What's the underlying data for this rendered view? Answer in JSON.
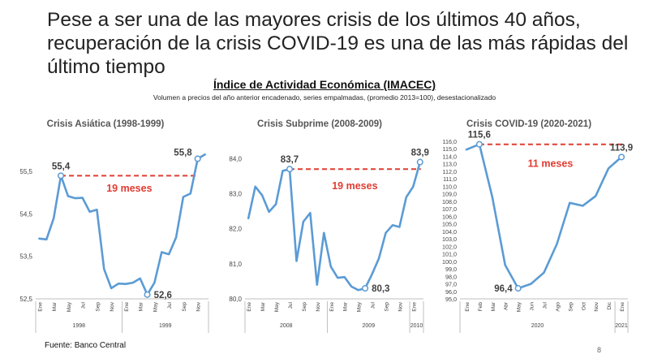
{
  "slide": {
    "title": "Pese a ser una de las mayores crisis de los últimos 40 años, recuperación de la crisis COVID-19 es una de las más rápidas del último tiempo",
    "main_title": "Índice de Actividad Económica (IMACEC)",
    "subtitle": "Volumen a precios del año anterior encadenado, series empalmadas, (promedio 2013=100), desestacionalizado",
    "footer": "Fuente: Banco Central",
    "page_number": "8"
  },
  "colors": {
    "line": "#5b9bd5",
    "marker_fill": "#ffffff",
    "dashed": "#e03c31",
    "annotation": "#e03c31"
  },
  "chart_data": [
    {
      "type": "line",
      "title": "Crisis Asiática (1998-1999)",
      "x": [
        "Ene",
        "Feb",
        "Mar",
        "Abr",
        "May",
        "Jun",
        "Jul",
        "Ago",
        "Sep",
        "Oct",
        "Nov",
        "Dic",
        "Ene",
        "Feb",
        "Mar",
        "Abr",
        "May",
        "Jun",
        "Jul",
        "Ago",
        "Sep",
        "Oct",
        "Nov",
        "Dic"
      ],
      "tick_labels": [
        "Ene",
        "",
        "Mar",
        "",
        "May",
        "",
        "Jul",
        "",
        "Sep",
        "",
        "Nov",
        "",
        "Ene",
        "",
        "Mar",
        "",
        "May",
        "",
        "Jul",
        "",
        "Sep",
        "",
        "Nov",
        ""
      ],
      "year_groups": [
        {
          "label": "1998",
          "start": 0,
          "end": 11
        },
        {
          "label": "1999",
          "start": 12,
          "end": 23
        }
      ],
      "values": [
        53.92,
        53.9,
        54.4,
        55.4,
        54.92,
        54.87,
        54.88,
        54.55,
        54.6,
        53.2,
        52.75,
        52.86,
        52.85,
        52.88,
        52.98,
        52.6,
        52.88,
        53.6,
        53.55,
        53.95,
        54.9,
        54.98,
        55.8,
        55.9
      ],
      "ylim": [
        52.5,
        56.0
      ],
      "yticks": [
        "52,5",
        "53,5",
        "54,5",
        "55,5"
      ],
      "ytick_values": [
        52.5,
        53.5,
        54.5,
        55.5
      ],
      "highlight": [
        {
          "index": 3,
          "label": "55,4",
          "anchor": "above"
        },
        {
          "index": 15,
          "label": "52,6",
          "anchor": "right"
        },
        {
          "index": 22,
          "label": "55,8",
          "anchor": "left"
        }
      ],
      "dashed_from": 3,
      "dashed_to": 22,
      "dashed_y": 55.4,
      "span_label": "19 meses",
      "span_label_y": 55.25
    },
    {
      "type": "line",
      "title": "Crisis Subprime (2008-2009)",
      "x": [
        "Ene",
        "Feb",
        "Mar",
        "Abr",
        "May",
        "Jun",
        "Jul",
        "Ago",
        "Sep",
        "Oct",
        "Nov",
        "Dic",
        "Ene",
        "Feb",
        "Mar",
        "Abr",
        "May",
        "Jun",
        "Jul",
        "Ago",
        "Sep",
        "Oct",
        "Nov",
        "Dic",
        "Ene",
        "Feb"
      ],
      "tick_labels": [
        "Ene",
        "",
        "Mar",
        "",
        "May",
        "",
        "Jul",
        "",
        "Sep",
        "",
        "Nov",
        "",
        "Ene",
        "",
        "Mar",
        "",
        "May",
        "",
        "Jul",
        "",
        "Sep",
        "",
        "Nov",
        "",
        "Ene",
        ""
      ],
      "year_groups": [
        {
          "label": "2008",
          "start": 0,
          "end": 11
        },
        {
          "label": "2009",
          "start": 12,
          "end": 23
        },
        {
          "label": "2010",
          "start": 24,
          "end": 25
        }
      ],
      "values": [
        82.3,
        83.2,
        82.95,
        82.48,
        82.7,
        83.65,
        83.7,
        81.08,
        82.2,
        82.45,
        80.4,
        81.88,
        80.92,
        80.6,
        80.62,
        80.35,
        80.25,
        80.3,
        80.7,
        81.15,
        81.88,
        82.1,
        82.05,
        82.9,
        83.2,
        83.9
      ],
      "ylim": [
        80.0,
        84.4
      ],
      "yticks": [
        "80,0",
        "81,0",
        "82,0",
        "83,0",
        "84,0"
      ],
      "ytick_values": [
        80.0,
        81.0,
        82.0,
        83.0,
        84.0
      ],
      "highlight": [
        {
          "index": 6,
          "label": "83,7",
          "anchor": "above"
        },
        {
          "index": 17,
          "label": "80,3",
          "anchor": "right"
        },
        {
          "index": 25,
          "label": "83,9",
          "anchor": "above"
        }
      ],
      "dashed_from": 6,
      "dashed_to": 25,
      "dashed_y": 83.7,
      "span_label": "19 meses",
      "span_label_y": 83.4
    },
    {
      "type": "line",
      "title": "Crisis COVID-19 (2020-2021)",
      "x": [
        "Ene",
        "Feb",
        "Mar",
        "Abr",
        "May",
        "Jun",
        "Jul",
        "Ago",
        "Sep",
        "Oct",
        "Nov",
        "Dic",
        "Ene"
      ],
      "tick_labels": [
        "Ene",
        "Feb",
        "Mar",
        "Abr",
        "May",
        "Jun",
        "Jul",
        "Ago",
        "Sep",
        "Oct",
        "Nov",
        "Dic",
        "Ene"
      ],
      "year_groups": [
        {
          "label": "2020",
          "start": 0,
          "end": 11
        },
        {
          "label": "2021",
          "start": 12,
          "end": 12
        }
      ],
      "values": [
        114.9,
        115.6,
        108.6,
        99.5,
        96.4,
        97.0,
        98.5,
        102.3,
        107.8,
        107.4,
        108.7,
        112.4,
        113.9
      ],
      "ylim": [
        95.0,
        116.0
      ],
      "yticks": [
        "95,0",
        "96,0",
        "97,0",
        "98,0",
        "99,0",
        "100,0",
        "101,0",
        "102,0",
        "103,0",
        "104,0",
        "105,0",
        "106,0",
        "107,0",
        "108,0",
        "109,0",
        "110,0",
        "111,0",
        "112,0",
        "113,0",
        "114,0",
        "115,0",
        "116,0"
      ],
      "ytick_values": [
        95,
        96,
        97,
        98,
        99,
        100,
        101,
        102,
        103,
        104,
        105,
        106,
        107,
        108,
        109,
        110,
        111,
        112,
        113,
        114,
        115,
        116
      ],
      "highlight": [
        {
          "index": 1,
          "label": "115,6",
          "anchor": "above"
        },
        {
          "index": 4,
          "label": "96,4",
          "anchor": "left"
        },
        {
          "index": 12,
          "label": "113,9",
          "anchor": "above"
        }
      ],
      "dashed_from": 1,
      "dashed_to": 12,
      "dashed_y": 115.6,
      "span_label": "11 meses",
      "span_label_y": 113.9
    }
  ]
}
